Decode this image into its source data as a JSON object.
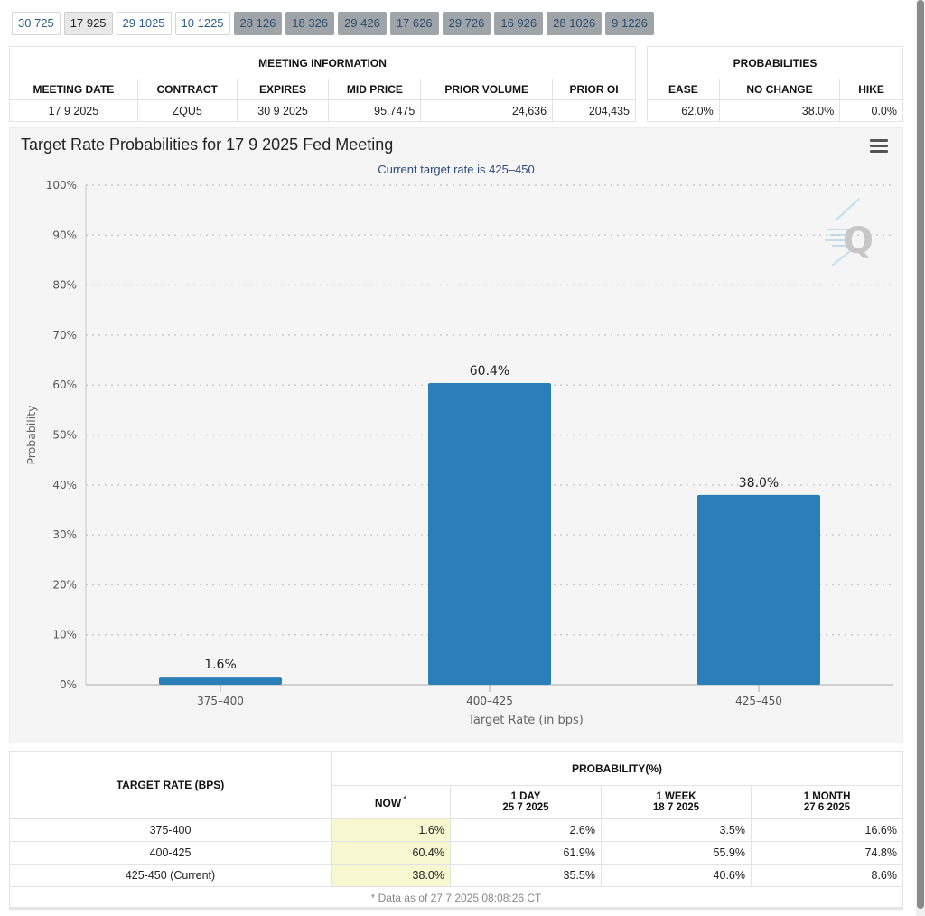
{
  "tabs": [
    {
      "label": "30 725",
      "style": "normal"
    },
    {
      "label": "17 925",
      "style": "active"
    },
    {
      "label": "29 1025",
      "style": "normal"
    },
    {
      "label": "10 1225",
      "style": "normal"
    },
    {
      "label": "28 126",
      "style": "gray"
    },
    {
      "label": "18 326",
      "style": "gray"
    },
    {
      "label": "29 426",
      "style": "gray"
    },
    {
      "label": "17 626",
      "style": "gray"
    },
    {
      "label": "29 726",
      "style": "gray"
    },
    {
      "label": "16 926",
      "style": "gray"
    },
    {
      "label": "28 1026",
      "style": "gray"
    },
    {
      "label": "9 1226",
      "style": "gray"
    }
  ],
  "meeting_info": {
    "title": "MEETING INFORMATION",
    "headers": [
      "MEETING DATE",
      "CONTRACT",
      "EXPIRES",
      "MID PRICE",
      "PRIOR VOLUME",
      "PRIOR OI"
    ],
    "values": [
      "17 9 2025",
      "ZQU5",
      "30 9 2025",
      "95.7475",
      "24,636",
      "204,435"
    ]
  },
  "probabilities": {
    "title": "PROBABILITIES",
    "headers": [
      "EASE",
      "NO CHANGE",
      "HIKE"
    ],
    "values": [
      "62.0%",
      "38.0%",
      "0.0%"
    ]
  },
  "chart_data": {
    "type": "bar",
    "title": "Target Rate Probabilities for 17 9 2025 Fed Meeting",
    "subtitle": "Current target rate is 425–450",
    "xlabel": "Target Rate (in bps)",
    "ylabel": "Probability",
    "categories": [
      "375–400",
      "400–425",
      "425–450"
    ],
    "values": [
      1.6,
      60.4,
      38.0
    ],
    "value_labels": [
      "1.6%",
      "60.4%",
      "38.0%"
    ],
    "ylim": [
      0,
      100
    ],
    "yticks": [
      0,
      10,
      20,
      30,
      40,
      50,
      60,
      70,
      80,
      90,
      100
    ],
    "ytick_labels": [
      "0%",
      "10%",
      "20%",
      "30%",
      "40%",
      "50%",
      "60%",
      "70%",
      "80%",
      "90%",
      "100%"
    ],
    "grid": true,
    "bar_color": "#2b7fb8"
  },
  "history": {
    "col_target": "TARGET RATE (BPS)",
    "col_prob": "PROBABILITY(%)",
    "now_label": "NOW",
    "now_mark": "*",
    "periods": [
      {
        "label": "1 DAY",
        "date": "25 7 2025"
      },
      {
        "label": "1 WEEK",
        "date": "18 7 2025"
      },
      {
        "label": "1 MONTH",
        "date": "27 6 2025"
      }
    ],
    "rows": [
      {
        "rate": "375-400",
        "now": "1.6%",
        "day": "2.6%",
        "week": "3.5%",
        "month": "16.6%"
      },
      {
        "rate": "400-425",
        "now": "60.4%",
        "day": "61.9%",
        "week": "55.9%",
        "month": "74.8%"
      },
      {
        "rate": "425-450 (Current)",
        "now": "38.0%",
        "day": "35.5%",
        "week": "40.6%",
        "month": "8.6%"
      }
    ],
    "footnote": "* Data as of 27 7 2025 08:08:26 CT"
  }
}
